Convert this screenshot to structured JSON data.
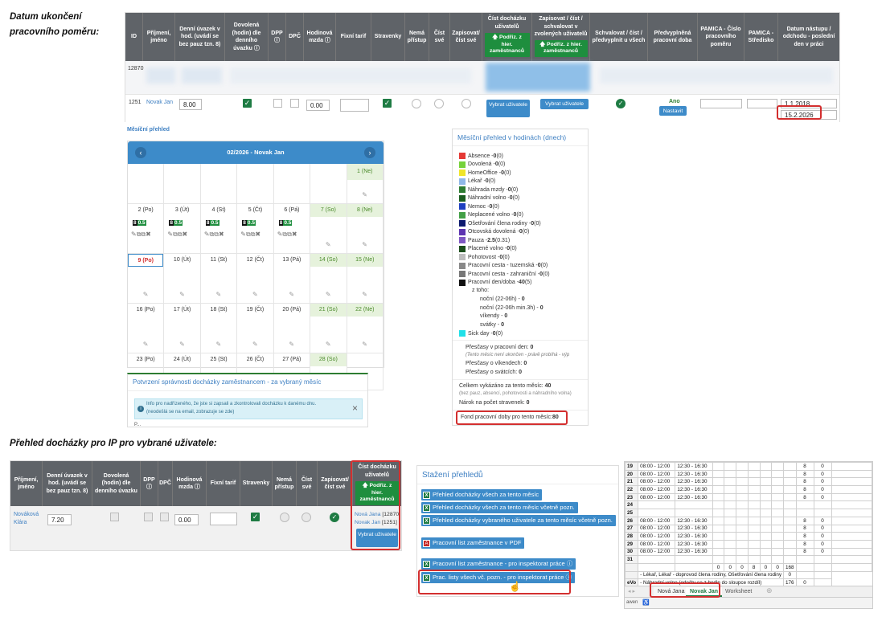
{
  "headings": {
    "top": "Datum ukončení pracovního poměru:",
    "bottom": "Přehled docházky pro IP pro vybrané uživatele:"
  },
  "top_table": {
    "columns": [
      "ID",
      "Příjmení, jméno",
      "Denní úvazek v hod. (uvádí se bez pauz tzn. 8)",
      "Dovolená (hodin) dle denního úvazku ⓘ",
      "DPP ⓘ",
      "DPČ",
      "Hodinová mzda ⓘ",
      "Fixní tarif",
      "Stravenky",
      "Nemá přístup",
      "Číst své",
      "Zapisovat/ číst své",
      "Číst docházku uživatelů",
      "Zapisovat / číst / schvalovat v zvolených uživatelů",
      "Schvalovat / číst / předvyplnit u všech",
      "Předvyplněná pracovní doba",
      "PAMICA - Číslo pracovního poměru",
      "PAMICA - Středisko",
      "Datum nástupu / odchodu - poslední den v práci"
    ],
    "podriz_btn": "🡅 Podřiz. z hier. zaměstnanců",
    "row1_id": "12870",
    "row2": {
      "id": "1251",
      "name": "Novak Jan",
      "uvazek": "8.00",
      "mzda": "0.00",
      "vybrat_btn1": "Vybrat uživatele",
      "vybrat_btn2": "Vybrat uživatele",
      "ano": "Ano",
      "nastavit": "Nastavit",
      "nastup": "1.1.2018",
      "odchod": "15.2.2026"
    }
  },
  "calendar": {
    "section_label": "Měsíční přehled",
    "title": "02/2026 - Novak Jan",
    "weeks": [
      [
        "",
        "",
        "",
        "",
        "",
        "",
        "1 (Ne)"
      ],
      [
        "2 (Po)",
        "3 (Út)",
        "4 (St)",
        "5 (Čt)",
        "6 (Pá)",
        "7 (So)",
        "8 (Ne)"
      ],
      [
        "9 (Po)",
        "10 (Út)",
        "11 (St)",
        "12 (Čt)",
        "13 (Pá)",
        "14 (So)",
        "15 (Ne)"
      ],
      [
        "16 (Po)",
        "17 (Út)",
        "18 (St)",
        "19 (Čt)",
        "20 (Pá)",
        "21 (So)",
        "22 (Ne)"
      ],
      [
        "23 (Po)",
        "24 (Út)",
        "25 (St)",
        "26 (Čt)",
        "27 (Pá)",
        "28 (So)",
        ""
      ]
    ],
    "day_tag_a": "8",
    "day_tag_b": "0.5"
  },
  "confirm": {
    "title": "Potvrzení správnosti docházky zaměstnancem - za vybraný měsíc",
    "info_line1": "Info pro nadřízeného, že jste si zapsali a zkontrolovali docházku k danému dnu.",
    "info_line2": "(neodešlá se na email, zobrazuje se zde)",
    "cut_text": "P..."
  },
  "monthly": {
    "title": "Měsíční přehled v hodinách (dnech)",
    "legend": [
      {
        "label": "Absence - ",
        "value": "0",
        "extra": " (0)",
        "color": "#e53935"
      },
      {
        "label": "Dovolená - ",
        "value": "0",
        "extra": " (0)",
        "color": "#76d23a"
      },
      {
        "label": "HomeOffice - ",
        "value": "0",
        "extra": " (0)",
        "color": "#f0e52a"
      },
      {
        "label": "Lékař - ",
        "value": "0",
        "extra": " (0)",
        "color": "#8fb8e8"
      },
      {
        "label": "Náhrada mzdy - ",
        "value": "0",
        "extra": " (0)",
        "color": "#2e7d32"
      },
      {
        "label": "Náhradní volno - ",
        "value": "0",
        "extra": " (0)",
        "color": "#1b5e20"
      },
      {
        "label": "Nemoc - ",
        "value": "0",
        "extra": " (0)",
        "color": "#1e3fbf"
      },
      {
        "label": "Neplacené volno - ",
        "value": "0",
        "extra": " (0)",
        "color": "#43a047"
      },
      {
        "label": "Ošetřování člena rodiny - ",
        "value": "0",
        "extra": " (0)",
        "color": "#0d1a6e"
      },
      {
        "label": "Otcovská dovolená - ",
        "value": "0",
        "extra": " (0)",
        "color": "#5e35b1"
      },
      {
        "label": "Pauza - ",
        "value": "2.5",
        "extra": " (0.31)",
        "color": "#7e57c2"
      },
      {
        "label": "Placené volno - ",
        "value": "0",
        "extra": " (0)",
        "color": "#1b4d1b"
      },
      {
        "label": "Pohotovost - ",
        "value": "0",
        "extra": " (0)",
        "color": "#bdbdbd"
      },
      {
        "label": "Pracovní cesta - tuzemská - ",
        "value": "0",
        "extra": " (0)",
        "color": "#888888"
      },
      {
        "label": "Pracovní cesta - zahraniční - ",
        "value": "0",
        "extra": " (0)",
        "color": "#777777"
      },
      {
        "label": "Pracovní den/doba - ",
        "value": "40",
        "extra": " (5)",
        "color": "#111111"
      }
    ],
    "ztoho": "z toho:",
    "sub": [
      {
        "label": "noční (22-06h) - ",
        "value": "0"
      },
      {
        "label": "noční (22-06h min.3h) - ",
        "value": "0"
      },
      {
        "label": "víkendy - ",
        "value": "0"
      },
      {
        "label": "svátky - ",
        "value": "0"
      }
    ],
    "sick": {
      "label": "Sick day - ",
      "value": "0",
      "extra": " (0)",
      "color": "#20e0e8"
    },
    "prescasy": "Přesčasy v pracovní den: ",
    "prescasy_val": "0",
    "note": "(Tento měsíc není ukončen - právě probíhá - výp",
    "vikendy": "Přesčasy o víkendech: ",
    "vikendy_val": "0",
    "svatky": "Přesčasy o svátcích: ",
    "svatky_val": "0",
    "celkem": "Celkem vykázáno za tento měsíc: ",
    "celkem_val": "40",
    "celkem_note": "(bez pauz, absencí, pohotovosti a náhradního volna)",
    "narok": "Nárok na počet stravenek: ",
    "narok_val": "0",
    "fond": "Fond pracovní doby pro tento měsíc:",
    "fond_val": "80"
  },
  "bottom_table": {
    "columns": [
      "Příjmení, jméno",
      "Denní úvazek v hod. (uvádí se bez pauz tzn. 8)",
      "Dovolená (hodin) dle denního úvazku",
      "DPP ⓘ",
      "DPČ",
      "Hodinová mzda ⓘ",
      "Fixní tarif",
      "Stravenky",
      "Nemá přístup",
      "Číst své",
      "Zapisovat/ číst své",
      "Číst docházku uživatelů"
    ],
    "podriz": "🡅 Podřiz. z hier. zaměstnanců",
    "name": "Nováková Klára",
    "uvazek": "7.20",
    "mzda": "0.00",
    "users_line1_name": "Nová Jana",
    "users_line1_id": " [12870]",
    "users_line2_name": "Novak Jan",
    "users_line2_id": " [1251]",
    "vybrat": "Vybrat uživatele"
  },
  "download": {
    "title": "Stažení přehledů",
    "btns": [
      "Přehled docházky všech za tento měsíc",
      "Přehled docházky všech za tento měsíc včetně pozn.",
      "Přehled docházky vybraného uživatele za tento měsíc včetně pozn.",
      "Pracovní list zaměstnance v PDF",
      "Pracovní list zaměstnance - pro inspektorat práce ⓘ",
      "Prac. listy všech vč. pozn. - pro inspektorat práce ⓘ"
    ]
  },
  "sheet": {
    "rows": [
      {
        "n": "19",
        "a": "08:00 - 12:00",
        "b": "12:30 - 16:30",
        "h": "8",
        "z": "0"
      },
      {
        "n": "20",
        "a": "08:00 - 12:00",
        "b": "12:30 - 16:30",
        "h": "8",
        "z": "0"
      },
      {
        "n": "21",
        "a": "08:00 - 12:00",
        "b": "12:30 - 16:30",
        "h": "8",
        "z": "0"
      },
      {
        "n": "22",
        "a": "08:00 - 12:00",
        "b": "12:30 - 16:30",
        "h": "8",
        "z": "0"
      },
      {
        "n": "23",
        "a": "08:00 - 12:00",
        "b": "12:30 - 16:30",
        "h": "8",
        "z": "0"
      },
      {
        "n": "24",
        "a": "",
        "b": "",
        "h": "",
        "z": ""
      },
      {
        "n": "25",
        "a": "",
        "b": "",
        "h": "",
        "z": ""
      },
      {
        "n": "26",
        "a": "08:00 - 12:00",
        "b": "12:30 - 16:30",
        "h": "8",
        "z": "0"
      },
      {
        "n": "27",
        "a": "08:00 - 12:00",
        "b": "12:30 - 16:30",
        "h": "8",
        "z": "0"
      },
      {
        "n": "28",
        "a": "08:00 - 12:00",
        "b": "12:30 - 16:30",
        "h": "8",
        "z": "0"
      },
      {
        "n": "29",
        "a": "08:00 - 12:00",
        "b": "12:30 - 16:30",
        "h": "8",
        "z": "0"
      },
      {
        "n": "30",
        "a": "08:00 - 12:00",
        "b": "12:30 - 16:30",
        "h": "8",
        "z": "0"
      },
      {
        "n": "31",
        "a": "",
        "b": "",
        "h": "",
        "z": ""
      }
    ],
    "totals": [
      "0",
      "0",
      "0",
      "8",
      "0",
      "0",
      "168"
    ],
    "legend1": "- Lékař, Lékař - doprovod člena rodiny, Ošetřování člena rodiny",
    "legend1_val": "0",
    "legend2_prefix": "eVo",
    "legend2": "- Náhradní volno (odečtu se z hodin do sloupce rozdíl)",
    "legend2_val": "176",
    "legend2_val2": "0",
    "tabs": [
      "Nová Jana",
      "Novak Jan",
      "Worksheet"
    ],
    "status": "awen"
  }
}
